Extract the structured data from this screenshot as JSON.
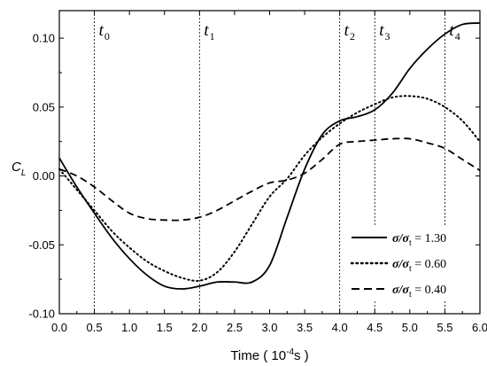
{
  "chart_data": {
    "type": "line",
    "xlabel": {
      "main": "Time ( 10",
      "sup": "-4",
      "tail": "s )"
    },
    "ylabel": {
      "main": "C",
      "sub": "L"
    },
    "xlim": [
      0.0,
      6.0
    ],
    "ylim": [
      -0.1,
      0.12
    ],
    "x_ticks": [
      "0.0",
      "0.5",
      "1.0",
      "1.5",
      "2.0",
      "2.5",
      "3.0",
      "3.5",
      "4.0",
      "4.5",
      "5.0",
      "5.5",
      "6.0"
    ],
    "y_ticks": [
      "-0.10",
      "-0.05",
      "0.00",
      "0.05",
      "0.10"
    ],
    "x_tick_values": [
      0,
      0.5,
      1,
      1.5,
      2,
      2.5,
      3,
      3.5,
      4,
      4.5,
      5,
      5.5,
      6
    ],
    "y_tick_values": [
      -0.1,
      -0.05,
      0.0,
      0.05,
      0.1
    ],
    "vertical_markers": [
      {
        "x": 0.5,
        "label": "t",
        "sub": "0"
      },
      {
        "x": 2.0,
        "label": "t",
        "sub": "1"
      },
      {
        "x": 4.0,
        "label": "t",
        "sub": "2"
      },
      {
        "x": 4.5,
        "label": "t",
        "sub": "3"
      },
      {
        "x": 5.5,
        "label": "t",
        "sub": "4"
      }
    ],
    "series": [
      {
        "name": "σ/σt = 1.30",
        "legend": {
          "sym": "σ/σ",
          "sub": "t",
          "value": " = 1.30"
        },
        "style": "solid",
        "x": [
          0.0,
          0.25,
          0.5,
          0.75,
          1.0,
          1.25,
          1.5,
          1.75,
          2.0,
          2.25,
          2.5,
          2.75,
          3.0,
          3.25,
          3.5,
          3.75,
          4.0,
          4.25,
          4.5,
          4.75,
          5.0,
          5.25,
          5.5,
          5.75,
          6.0
        ],
        "y": [
          0.013,
          -0.008,
          -0.027,
          -0.045,
          -0.06,
          -0.072,
          -0.08,
          -0.082,
          -0.08,
          -0.077,
          -0.077,
          -0.077,
          -0.065,
          -0.03,
          0.005,
          0.03,
          0.04,
          0.043,
          0.048,
          0.06,
          0.078,
          0.092,
          0.103,
          0.11,
          0.111
        ]
      },
      {
        "name": "σ/σt = 0.60",
        "legend": {
          "sym": "σ/σ",
          "sub": "t",
          "value": " = 0.60"
        },
        "style": "dotted",
        "x": [
          0.0,
          0.25,
          0.5,
          0.75,
          1.0,
          1.25,
          1.5,
          1.75,
          2.0,
          2.25,
          2.5,
          2.75,
          3.0,
          3.25,
          3.5,
          3.75,
          4.0,
          4.25,
          4.5,
          4.75,
          5.0,
          5.25,
          5.5,
          5.75,
          6.0
        ],
        "y": [
          0.005,
          -0.01,
          -0.025,
          -0.04,
          -0.052,
          -0.062,
          -0.069,
          -0.074,
          -0.076,
          -0.07,
          -0.055,
          -0.035,
          -0.015,
          -0.002,
          0.015,
          0.028,
          0.038,
          0.046,
          0.052,
          0.057,
          0.058,
          0.056,
          0.05,
          0.04,
          0.025
        ]
      },
      {
        "name": "σ/σt = 0.40",
        "legend": {
          "sym": "σ/σ",
          "sub": "t",
          "value": " = 0.40"
        },
        "style": "dashed",
        "x": [
          0.0,
          0.25,
          0.5,
          0.75,
          1.0,
          1.25,
          1.5,
          1.75,
          2.0,
          2.25,
          2.5,
          2.75,
          3.0,
          3.25,
          3.5,
          3.75,
          4.0,
          4.25,
          4.5,
          4.75,
          5.0,
          5.25,
          5.5,
          5.75,
          6.0
        ],
        "y": [
          0.005,
          0.0,
          -0.008,
          -0.018,
          -0.027,
          -0.031,
          -0.032,
          -0.032,
          -0.03,
          -0.025,
          -0.018,
          -0.011,
          -0.005,
          -0.003,
          0.002,
          0.012,
          0.023,
          0.025,
          0.026,
          0.027,
          0.027,
          0.024,
          0.02,
          0.012,
          0.004
        ]
      }
    ],
    "legend_position": "bottom-right",
    "grid": false
  }
}
